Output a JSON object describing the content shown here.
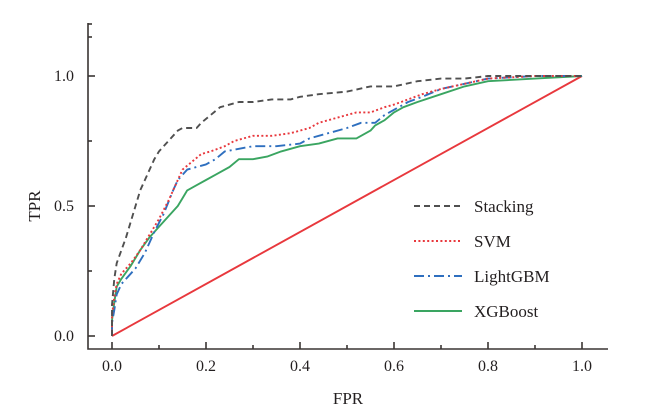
{
  "chart_data": {
    "type": "line",
    "title": "",
    "xlabel": "FPR",
    "ylabel": "TPR",
    "xlim": [
      -0.05,
      1.05
    ],
    "ylim": [
      -0.05,
      1.2
    ],
    "grid": false,
    "x_ticks": [
      "0.0",
      "0.2",
      "0.4",
      "0.6",
      "0.8",
      "1.0"
    ],
    "x_tick_values": [
      0.0,
      0.2,
      0.4,
      0.6,
      0.8,
      1.0
    ],
    "x_minor_tick_values": [
      0.1,
      0.3,
      0.5,
      0.7,
      0.9
    ],
    "y_ticks": [
      "0.0",
      "0.5",
      "1.0"
    ],
    "y_tick_values": [
      0.0,
      0.5,
      1.0
    ],
    "y_minor_tick_values": [
      0.25,
      0.75,
      1.15,
      1.2
    ],
    "legend_position": "center-right",
    "series": [
      {
        "name": "Stacking",
        "color": "#505050",
        "dash": "dashed",
        "x": [
          0.0,
          0.0,
          0.005,
          0.01,
          0.02,
          0.03,
          0.04,
          0.05,
          0.06,
          0.07,
          0.08,
          0.09,
          0.1,
          0.12,
          0.14,
          0.15,
          0.18,
          0.19,
          0.21,
          0.23,
          0.27,
          0.3,
          0.34,
          0.38,
          0.4,
          0.44,
          0.5,
          0.55,
          0.6,
          0.65,
          0.7,
          0.75,
          0.8,
          0.9,
          1.0
        ],
        "y": [
          0.0,
          0.12,
          0.22,
          0.28,
          0.33,
          0.38,
          0.44,
          0.5,
          0.56,
          0.6,
          0.64,
          0.68,
          0.71,
          0.75,
          0.79,
          0.8,
          0.8,
          0.82,
          0.85,
          0.88,
          0.9,
          0.9,
          0.91,
          0.91,
          0.92,
          0.93,
          0.94,
          0.96,
          0.96,
          0.98,
          0.99,
          0.99,
          1.0,
          1.0,
          1.0
        ]
      },
      {
        "name": "SVM",
        "color": "#e8383d",
        "dash": "dotted",
        "x": [
          0.0,
          0.0,
          0.005,
          0.01,
          0.02,
          0.04,
          0.06,
          0.08,
          0.1,
          0.12,
          0.14,
          0.15,
          0.17,
          0.19,
          0.21,
          0.24,
          0.26,
          0.3,
          0.34,
          0.38,
          0.42,
          0.44,
          0.48,
          0.52,
          0.55,
          0.58,
          0.6,
          0.63,
          0.66,
          0.7,
          0.75,
          0.8,
          0.9,
          1.0
        ],
        "y": [
          0.0,
          0.08,
          0.15,
          0.2,
          0.24,
          0.28,
          0.33,
          0.39,
          0.45,
          0.52,
          0.6,
          0.64,
          0.67,
          0.7,
          0.71,
          0.73,
          0.75,
          0.77,
          0.77,
          0.78,
          0.8,
          0.82,
          0.84,
          0.86,
          0.86,
          0.88,
          0.89,
          0.91,
          0.93,
          0.95,
          0.97,
          0.99,
          1.0,
          1.0
        ]
      },
      {
        "name": "LightGBM",
        "color": "#2e6fbf",
        "dash": "dashdot",
        "x": [
          0.0,
          0.0,
          0.005,
          0.01,
          0.02,
          0.03,
          0.05,
          0.07,
          0.09,
          0.11,
          0.13,
          0.14,
          0.16,
          0.18,
          0.2,
          0.22,
          0.24,
          0.27,
          0.3,
          0.35,
          0.4,
          0.42,
          0.46,
          0.5,
          0.53,
          0.56,
          0.58,
          0.6,
          0.63,
          0.66,
          0.7,
          0.75,
          0.8,
          0.9,
          1.0
        ],
        "y": [
          0.0,
          0.05,
          0.1,
          0.16,
          0.2,
          0.22,
          0.26,
          0.32,
          0.4,
          0.47,
          0.56,
          0.6,
          0.64,
          0.65,
          0.66,
          0.68,
          0.71,
          0.72,
          0.73,
          0.73,
          0.74,
          0.76,
          0.78,
          0.8,
          0.82,
          0.82,
          0.85,
          0.87,
          0.9,
          0.92,
          0.95,
          0.97,
          0.99,
          1.0,
          1.0
        ]
      },
      {
        "name": "XGBoost",
        "color": "#3aa561",
        "dash": "solid",
        "x": [
          0.0,
          0.0,
          0.005,
          0.01,
          0.02,
          0.04,
          0.06,
          0.08,
          0.1,
          0.12,
          0.14,
          0.15,
          0.16,
          0.18,
          0.2,
          0.22,
          0.25,
          0.27,
          0.3,
          0.33,
          0.36,
          0.4,
          0.44,
          0.48,
          0.52,
          0.55,
          0.56,
          0.58,
          0.6,
          0.62,
          0.65,
          0.7,
          0.75,
          0.8,
          0.9,
          1.0
        ],
        "y": [
          0.0,
          0.06,
          0.13,
          0.19,
          0.22,
          0.27,
          0.33,
          0.38,
          0.42,
          0.46,
          0.5,
          0.53,
          0.56,
          0.58,
          0.6,
          0.62,
          0.65,
          0.68,
          0.68,
          0.69,
          0.71,
          0.73,
          0.74,
          0.76,
          0.76,
          0.79,
          0.81,
          0.83,
          0.86,
          0.88,
          0.9,
          0.93,
          0.96,
          0.98,
          0.99,
          1.0
        ]
      },
      {
        "name": "Reference",
        "color": "#e8383d",
        "dash": "solid",
        "in_legend": false,
        "x": [
          0.0,
          1.0
        ],
        "y": [
          0.0,
          1.0
        ]
      }
    ]
  }
}
